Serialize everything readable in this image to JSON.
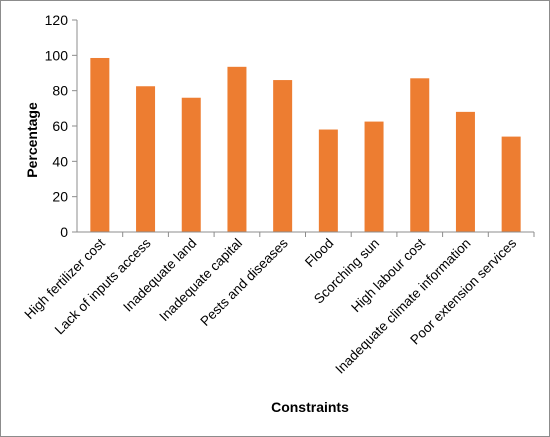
{
  "chart_data": {
    "type": "bar",
    "title": "",
    "xlabel": "Constraints",
    "ylabel": "Percentage",
    "ylim": [
      0,
      120
    ],
    "yticks": [
      0,
      20,
      40,
      60,
      80,
      100,
      120
    ],
    "grid": false,
    "legend": "none",
    "bar_color": "#ED7D31",
    "categories": [
      "High fertilizer cost",
      "Lack of inputs access",
      "Inadequate land",
      "Inadequate capital",
      "Pests and diseases",
      "Flood",
      "Scorching sun",
      "High labour cost",
      "Inadequate climate information",
      "Poor extension services"
    ],
    "values": [
      98.5,
      82.5,
      76,
      93.5,
      86,
      58,
      62.5,
      87,
      68,
      54
    ]
  }
}
